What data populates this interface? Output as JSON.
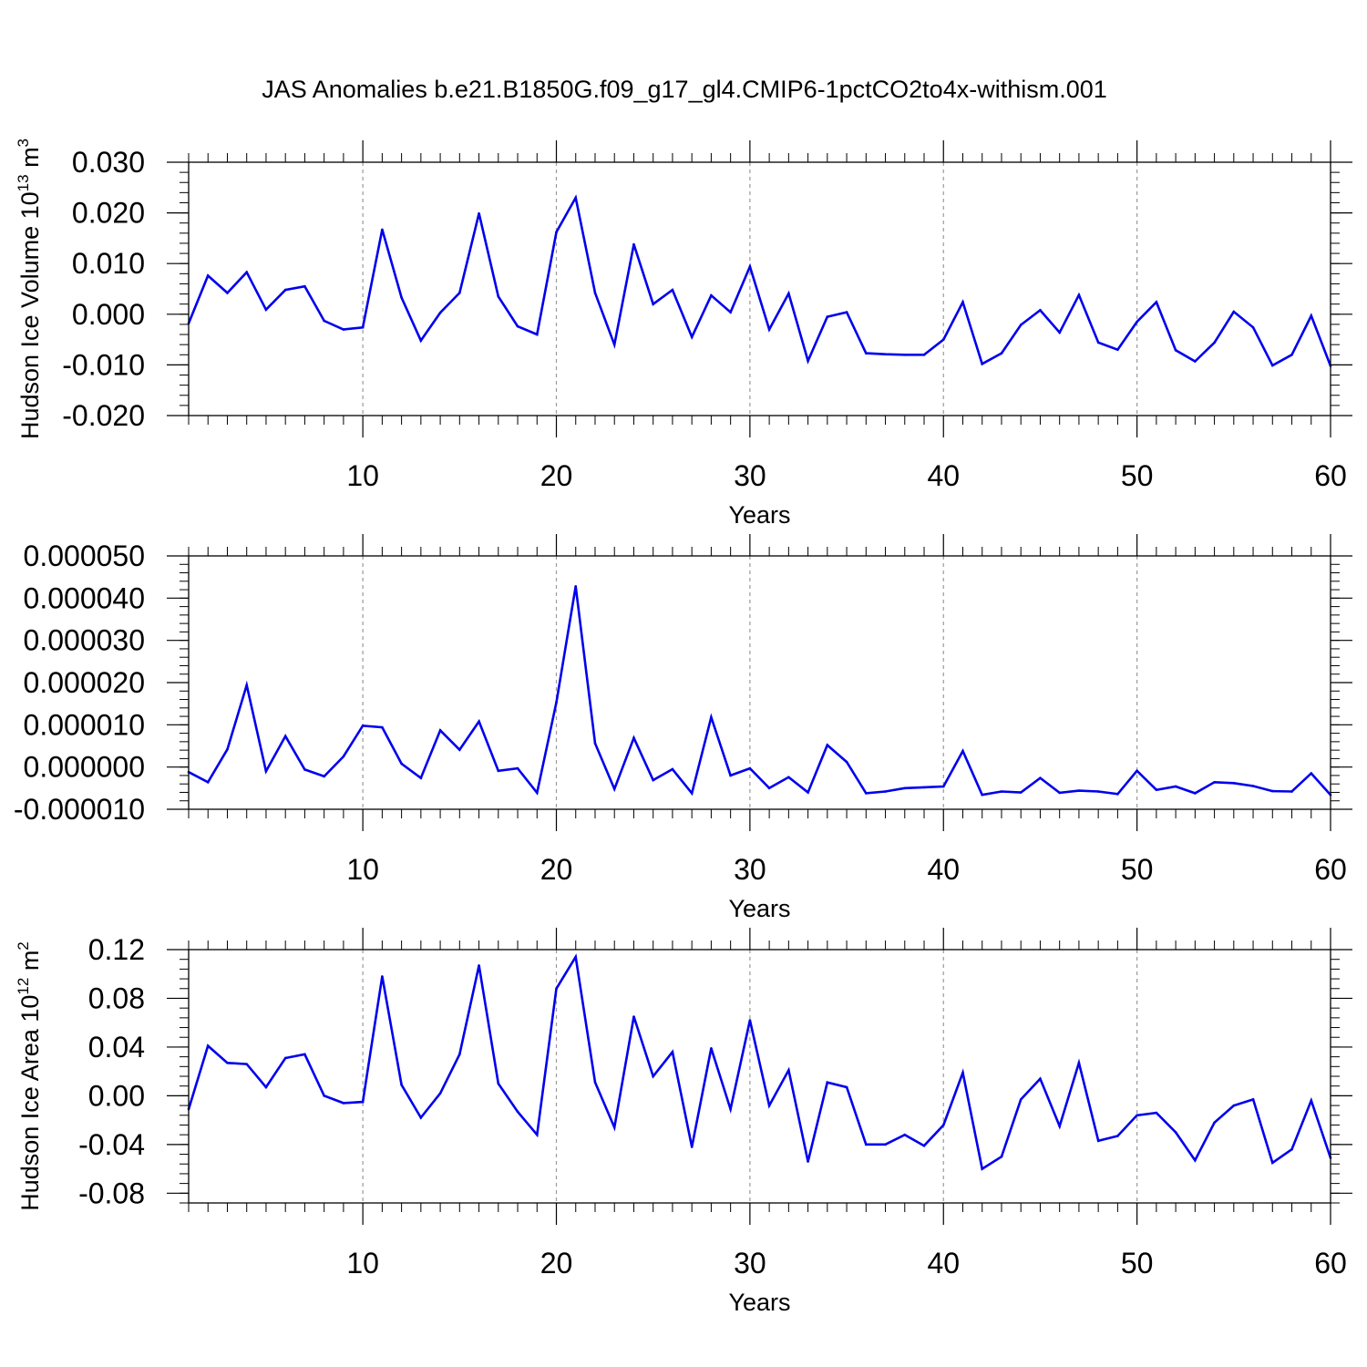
{
  "figure_title": "JAS Anomalies b.e21.B1850G.f09_g17_gl4.CMIP6-1pctCO2to4x-withism.001",
  "line_color": "#0000ee",
  "grid_color": "#9a9a9a",
  "chart_data": [
    {
      "type": "line",
      "title": "",
      "xlabel": "Years",
      "ylabel_main": "Hudson Ice Volume 10",
      "ylabel_sup": "13",
      "ylabel_unit": " m",
      "ylabel_unit_sup": "3",
      "xlim": [
        1,
        60
      ],
      "ylim": [
        -0.02,
        0.03
      ],
      "yticks": [
        -0.02,
        -0.01,
        0.0,
        0.01,
        0.02,
        0.03
      ],
      "ytick_labels": [
        "-0.020",
        "-0.010",
        "0.000",
        "0.010",
        "0.020",
        "0.030"
      ],
      "xticks": [
        10,
        20,
        30,
        40,
        50,
        60
      ],
      "xtick_labels": [
        "10",
        "20",
        "30",
        "40",
        "50",
        "60"
      ],
      "grid_x": [
        10,
        20,
        30,
        40,
        50
      ],
      "x": [
        1,
        2,
        3,
        4,
        5,
        6,
        7,
        8,
        9,
        10,
        11,
        12,
        13,
        14,
        15,
        16,
        17,
        18,
        19,
        20,
        21,
        22,
        23,
        24,
        25,
        26,
        27,
        28,
        29,
        30,
        31,
        32,
        33,
        34,
        35,
        36,
        37,
        38,
        39,
        40,
        41,
        42,
        43,
        44,
        45,
        46,
        47,
        48,
        49,
        50,
        51,
        52,
        53,
        54,
        55,
        56,
        57,
        58,
        59,
        60
      ],
      "values": [
        -0.0018,
        0.0076,
        0.0042,
        0.0083,
        0.0009,
        0.0048,
        0.0055,
        -0.0013,
        -0.003,
        -0.0026,
        0.0167,
        0.0033,
        -0.0052,
        0.0003,
        0.0042,
        0.0199,
        0.0035,
        -0.0024,
        -0.004,
        0.0162,
        0.023,
        0.0042,
        -0.006,
        0.0138,
        0.002,
        0.0048,
        -0.0045,
        0.0037,
        0.0004,
        0.0094,
        -0.003,
        0.0041,
        -0.0092,
        -0.0005,
        0.0004,
        -0.0077,
        -0.0079,
        -0.008,
        -0.008,
        -0.005,
        0.0024,
        -0.0098,
        -0.0077,
        -0.0021,
        0.0008,
        -0.0036,
        0.0038,
        -0.0056,
        -0.007,
        -0.0015,
        0.0024,
        -0.0071,
        -0.0093,
        -0.0056,
        0.0005,
        -0.0026,
        -0.0101,
        -0.008,
        -0.0003,
        -0.0102
      ]
    },
    {
      "type": "line",
      "title": "",
      "xlabel": "Years",
      "ylabel_main": "",
      "ylabel_sup": "",
      "ylabel_unit": "",
      "ylabel_unit_sup": "",
      "xlim": [
        1,
        60
      ],
      "ylim": [
        -1e-05,
        5e-05
      ],
      "yticks": [
        -1e-05,
        0.0,
        1e-05,
        2e-05,
        3e-05,
        4e-05,
        5e-05
      ],
      "ytick_labels": [
        "-0.000010",
        "0.000000",
        "0.000010",
        "0.000020",
        "0.000030",
        "0.000040",
        "0.000050"
      ],
      "xticks": [
        10,
        20,
        30,
        40,
        50,
        60
      ],
      "xtick_labels": [
        "10",
        "20",
        "30",
        "40",
        "50",
        "60"
      ],
      "grid_x": [
        10,
        20,
        30,
        40,
        50
      ],
      "x": [
        1,
        2,
        3,
        4,
        5,
        6,
        7,
        8,
        9,
        10,
        11,
        12,
        13,
        14,
        15,
        16,
        17,
        18,
        19,
        20,
        21,
        22,
        23,
        24,
        25,
        26,
        27,
        28,
        29,
        30,
        31,
        32,
        33,
        34,
        35,
        36,
        37,
        38,
        39,
        40,
        41,
        42,
        43,
        44,
        45,
        46,
        47,
        48,
        49,
        50,
        51,
        52,
        53,
        54,
        55,
        56,
        57,
        58,
        59,
        60
      ],
      "values": [
        -1.2e-06,
        -3.6e-06,
        4.2e-06,
        1.94e-05,
        -1e-06,
        7.3e-06,
        -6e-07,
        -2.2e-06,
        2.5e-06,
        9.8e-06,
        9.4e-06,
        8e-07,
        -2.6e-06,
        8.7e-06,
        4.1e-06,
        1.08e-05,
        -9e-07,
        -3e-07,
        -6.1e-06,
        1.53e-05,
        4.28e-05,
        5.6e-06,
        -5.2e-06,
        6.9e-06,
        -3.1e-06,
        -5e-07,
        -6.2e-06,
        1.18e-05,
        -2e-06,
        -3e-07,
        -5e-06,
        -2.4e-06,
        -6e-06,
        5.2e-06,
        1.2e-06,
        -6.2e-06,
        -5.8e-06,
        -5e-06,
        -4.8e-06,
        -4.6e-06,
        3.8e-06,
        -6.6e-06,
        -5.8e-06,
        -6e-06,
        -2.6e-06,
        -6.1e-06,
        -5.6e-06,
        -5.8e-06,
        -6.4e-06,
        -9e-07,
        -5.4e-06,
        -4.6e-06,
        -6.2e-06,
        -3.6e-06,
        -3.8e-06,
        -4.5e-06,
        -5.7e-06,
        -5.8e-06,
        -1.5e-06,
        -6.6e-06
      ]
    },
    {
      "type": "line",
      "title": "",
      "xlabel": "Years",
      "ylabel_main": "Hudson Ice Area 10",
      "ylabel_sup": "12",
      "ylabel_unit": " m",
      "ylabel_unit_sup": "2",
      "xlim": [
        1,
        60
      ],
      "ylim": [
        -0.088,
        0.12
      ],
      "yticks": [
        -0.08,
        -0.04,
        0.0,
        0.04,
        0.08,
        0.12
      ],
      "ytick_labels": [
        "-0.08",
        "-0.04",
        "0.00",
        "0.04",
        "0.08",
        "0.12"
      ],
      "xticks": [
        10,
        20,
        30,
        40,
        50,
        60
      ],
      "xtick_labels": [
        "10",
        "20",
        "30",
        "40",
        "50",
        "60"
      ],
      "grid_x": [
        10,
        20,
        30,
        40,
        50
      ],
      "x": [
        1,
        2,
        3,
        4,
        5,
        6,
        7,
        8,
        9,
        10,
        11,
        12,
        13,
        14,
        15,
        16,
        17,
        18,
        19,
        20,
        21,
        22,
        23,
        24,
        25,
        26,
        27,
        28,
        29,
        30,
        31,
        32,
        33,
        34,
        35,
        36,
        37,
        38,
        39,
        40,
        41,
        42,
        43,
        44,
        45,
        46,
        47,
        48,
        49,
        50,
        51,
        52,
        53,
        54,
        55,
        56,
        57,
        58,
        59,
        60
      ],
      "values": [
        -0.011,
        0.041,
        0.027,
        0.026,
        0.007,
        0.031,
        0.034,
        0.0,
        -0.006,
        -0.005,
        0.098,
        0.009,
        -0.018,
        0.002,
        0.034,
        0.107,
        0.01,
        -0.013,
        -0.032,
        0.088,
        0.114,
        0.011,
        -0.026,
        0.065,
        0.016,
        0.036,
        -0.042,
        0.039,
        -0.011,
        0.062,
        -0.008,
        0.021,
        -0.054,
        0.011,
        0.007,
        -0.04,
        -0.04,
        -0.032,
        -0.041,
        -0.024,
        0.019,
        -0.06,
        -0.05,
        -0.003,
        0.014,
        -0.025,
        0.027,
        -0.037,
        -0.033,
        -0.016,
        -0.014,
        -0.03,
        -0.053,
        -0.022,
        -0.008,
        -0.003,
        -0.055,
        -0.044,
        -0.004,
        -0.051
      ]
    }
  ]
}
